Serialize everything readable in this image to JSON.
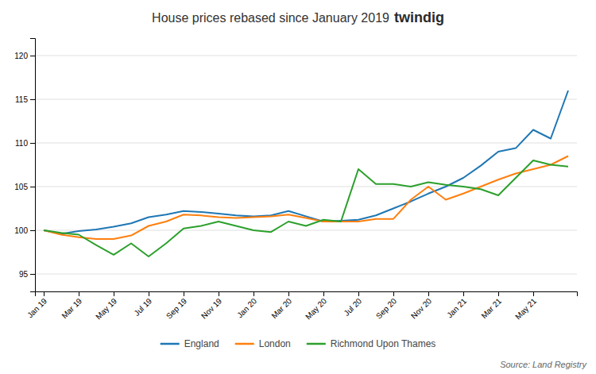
{
  "chart_data": {
    "type": "line",
    "title": "House prices rebased since January 2019",
    "annotations": [
      "twindig",
      "Source: Land Registry"
    ],
    "categories": [
      "Jan 19",
      null,
      "Mar 19",
      null,
      "May 19",
      null,
      "Jul 19",
      null,
      "Sep 19",
      null,
      "Nov 19",
      null,
      "Jan 20",
      null,
      "Mar 20",
      null,
      "May 20",
      null,
      "Jul 20",
      null,
      "Sep 20",
      null,
      "Nov 20",
      null,
      "Jan 21",
      null,
      "Mar 21",
      null,
      "May 21",
      null,
      null
    ],
    "series": [
      {
        "name": "England",
        "values": [
          100.0,
          99.6,
          99.9,
          100.1,
          100.4,
          100.8,
          101.5,
          101.8,
          102.2,
          102.1,
          101.9,
          101.7,
          101.6,
          101.7,
          102.2,
          101.6,
          101.0,
          101.1,
          101.2,
          101.7,
          102.5,
          103.3,
          104.2,
          105.0,
          106.0,
          107.4,
          109.0,
          109.4,
          111.5,
          110.5,
          116.0
        ]
      },
      {
        "name": "London",
        "values": [
          100.0,
          99.5,
          99.2,
          99.0,
          99.0,
          99.4,
          100.5,
          101.0,
          101.8,
          101.7,
          101.5,
          101.4,
          101.5,
          101.6,
          101.8,
          101.4,
          101.0,
          101.0,
          101.0,
          101.3,
          101.3,
          103.5,
          105.0,
          103.5,
          104.2,
          105.0,
          105.8,
          106.5,
          107.0,
          107.5,
          108.5
        ]
      },
      {
        "name": "Richmond Upon Thames",
        "values": [
          100.0,
          99.7,
          99.5,
          98.3,
          97.2,
          98.5,
          97.0,
          98.5,
          100.2,
          100.5,
          101.0,
          100.5,
          100.0,
          99.8,
          101.0,
          100.5,
          101.2,
          101.0,
          107.0,
          105.3,
          105.3,
          105.0,
          105.5,
          105.2,
          105.0,
          104.7,
          104.0,
          106.0,
          108.0,
          107.5,
          107.3
        ]
      }
    ],
    "ylim": [
      93,
      122
    ],
    "yticks": [
      95,
      100,
      105,
      110,
      115,
      120
    ],
    "grid": true,
    "legend": "bottom"
  }
}
